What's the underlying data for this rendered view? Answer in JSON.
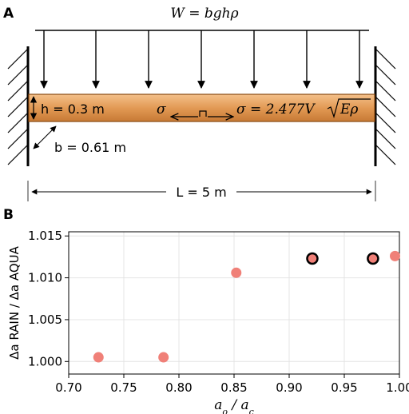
{
  "panel_a": {
    "label": "A",
    "load_formula": "W = bghρ",
    "height_label": "h = 0.3 m",
    "width_label": "b = 0.61 m",
    "length_label": "L = 5 m",
    "stress_left": "σ",
    "stress_right": "σ = 2.477V",
    "sqrt_term": "Eρ",
    "colors": {
      "beam": "#e5a468",
      "beam_edge": "#8a4a12"
    }
  },
  "panel_b": {
    "label": "B"
  },
  "chart_data": {
    "type": "scatter",
    "xlabel": "a_o / a_c",
    "ylabel": "Δa RAIN / Δa AQUA",
    "xlim": [
      0.7,
      1.0
    ],
    "ylim": [
      0.9985,
      1.0155
    ],
    "xticks": [
      "0.70",
      "0.75",
      "0.80",
      "0.85",
      "0.90",
      "0.95",
      "1.00"
    ],
    "yticks": [
      "1.000",
      "1.005",
      "1.010",
      "1.015"
    ],
    "grid": true,
    "marker_color": "#f08078",
    "highlight_edge_color": "#000000",
    "points": [
      {
        "x": 0.727,
        "y": 1.0005,
        "highlight": false
      },
      {
        "x": 0.786,
        "y": 1.0005,
        "highlight": false
      },
      {
        "x": 0.852,
        "y": 1.0106,
        "highlight": false
      },
      {
        "x": 0.921,
        "y": 1.0123,
        "highlight": true
      },
      {
        "x": 0.976,
        "y": 1.0123,
        "highlight": true
      },
      {
        "x": 0.996,
        "y": 1.0126,
        "highlight": false
      }
    ]
  }
}
